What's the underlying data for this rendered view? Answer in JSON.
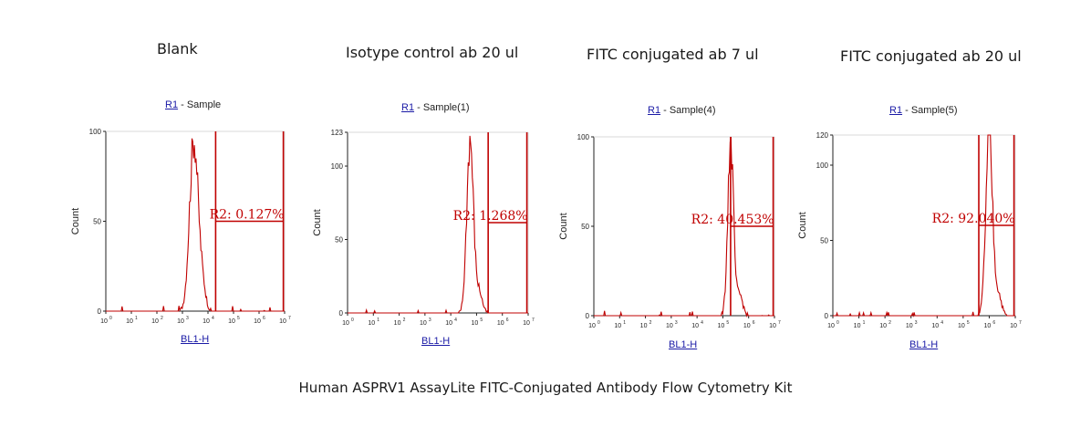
{
  "footer": "Human ASPRV1 AssayLite FITC-Conjugated Antibody Flow Cytometry Kit",
  "colors": {
    "trace": "#c00000",
    "axis": "#222222",
    "link": "#1a1aa6"
  },
  "chart_data": [
    {
      "type": "histogram",
      "title": "Blank",
      "region_label": "R1",
      "region_sample": "- Sample",
      "xlabel": "BL1-H",
      "ylabel": "Count",
      "xscale": "log",
      "xlim_exp": [
        0,
        7
      ],
      "ylim": [
        0,
        100
      ],
      "yticks": [
        "0",
        "50",
        "100"
      ],
      "gate_lines_exp": [
        4.3,
        6.95
      ],
      "gate_label": "R2: 0.127%",
      "gate_bar_frac": 0.5,
      "peak": {
        "center_exp": 3.45,
        "height": 96,
        "spread": 0.17
      }
    },
    {
      "type": "histogram",
      "title": "Isotype control ab 20 ul",
      "region_label": "R1",
      "region_sample": "- Sample(1)",
      "xlabel": "BL1-H",
      "ylabel": "Count",
      "xscale": "log",
      "xlim_exp": [
        0,
        7
      ],
      "ylim": [
        0,
        123
      ],
      "yticks": [
        "0",
        "50",
        "100",
        "123"
      ],
      "gate_lines_exp": [
        5.45,
        6.95
      ],
      "gate_label": "R2: 1.268%",
      "gate_bar_frac": 0.5,
      "peak": {
        "center_exp": 4.75,
        "height": 118,
        "spread": 0.13
      }
    },
    {
      "type": "histogram",
      "title": "FITC conjugated ab 7 ul",
      "region_label": "R1",
      "region_sample": "- Sample(4)",
      "xlabel": "BL1-H",
      "ylabel": "Count",
      "xscale": "log",
      "xlim_exp": [
        0,
        7
      ],
      "ylim": [
        0,
        100
      ],
      "yticks": [
        "0",
        "50",
        "100"
      ],
      "gate_lines_exp": [
        5.3,
        6.95
      ],
      "gate_label": "R2: 40.453%",
      "gate_bar_frac": 0.5,
      "peak": {
        "center_exp": 5.3,
        "height": 98,
        "spread": 0.11
      }
    },
    {
      "type": "histogram",
      "title": "FITC conjugated ab 20 ul",
      "region_label": "R1",
      "region_sample": "- Sample(5)",
      "xlabel": "BL1-H",
      "ylabel": "Count",
      "xscale": "log",
      "xlim_exp": [
        0,
        7
      ],
      "ylim": [
        0,
        120
      ],
      "yticks": [
        "0",
        "50",
        "100",
        "120"
      ],
      "gate_lines_exp": [
        5.6,
        6.95
      ],
      "gate_label": "R2: 92.040%",
      "gate_bar_frac": 0.5,
      "peak": {
        "center_exp": 6.0,
        "height": 118,
        "spread": 0.13
      }
    }
  ]
}
